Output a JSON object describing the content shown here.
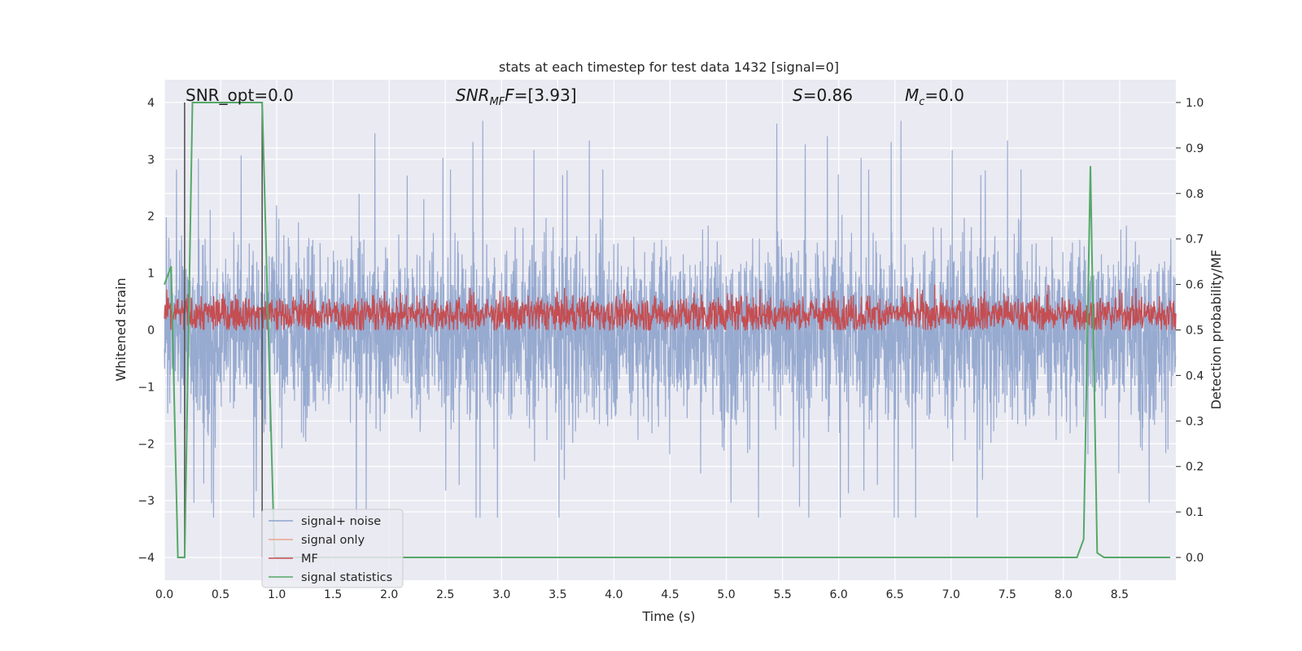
{
  "chart_data": {
    "type": "line",
    "title": "stats at each timestep for test data 1432 [signal=0]",
    "xlabel": "Time (s)",
    "ylabel_left": "Whitened strain",
    "ylabel_right": "Detection probability/MF",
    "xlim": [
      0.0,
      9.0
    ],
    "ylim_left": [
      -4.4,
      4.4
    ],
    "ylim_right": [
      -0.05,
      1.05
    ],
    "x_ticks": [
      "0.0",
      "0.5",
      "1.0",
      "1.5",
      "2.0",
      "2.5",
      "3.0",
      "3.5",
      "4.0",
      "4.5",
      "5.0",
      "5.5",
      "6.0",
      "6.5",
      "7.0",
      "7.5",
      "8.0",
      "8.5"
    ],
    "y_ticks_left": [
      "−4",
      "−3",
      "−2",
      "−1",
      "0",
      "1",
      "2",
      "3",
      "4"
    ],
    "y_ticks_right": [
      "0.0",
      "0.1",
      "0.2",
      "0.3",
      "0.4",
      "0.5",
      "0.6",
      "0.7",
      "0.8",
      "0.9",
      "1.0"
    ],
    "grid": true,
    "legend_position": "lower-left",
    "annotations": {
      "snr_opt": "SNR_opt=0.0",
      "snr_mf_sym": "SNR",
      "snr_mf_sub": "MF",
      "snr_mf_val": "=[3.93]",
      "s_sym": "S",
      "s_val": "=0.86",
      "mc_sym": "M",
      "mc_sub": "c",
      "mc_val": "=0.0"
    },
    "vertical_lines": [
      0.18,
      0.87
    ],
    "series": [
      {
        "name": "signal+ noise",
        "axis": "left",
        "color": "#8ea3cc",
        "noise_amplitude": 1.5,
        "peak_range": [
          -3.3,
          4.0
        ]
      },
      {
        "name": "signal only",
        "axis": "left",
        "color": "#e8a58c",
        "values": []
      },
      {
        "name": "MF",
        "axis": "right",
        "color": "#c44e52",
        "value_range": [
          0.5,
          0.6
        ]
      },
      {
        "name": "signal statistics",
        "axis": "right",
        "color": "#55a868",
        "x": [
          0.0,
          0.06,
          0.12,
          0.18,
          0.25,
          0.87,
          0.98,
          1.2,
          8.12,
          8.18,
          8.24,
          8.3,
          8.36,
          8.95
        ],
        "values": [
          0.6,
          0.64,
          0.0,
          0.0,
          1.0,
          1.0,
          0.0,
          0.0,
          0.0,
          0.04,
          0.86,
          0.01,
          0.0,
          0.0
        ]
      }
    ],
    "colors": {
      "plot_background": "#eaeaf2",
      "grid": "#ffffff",
      "vline": "#555555"
    }
  }
}
